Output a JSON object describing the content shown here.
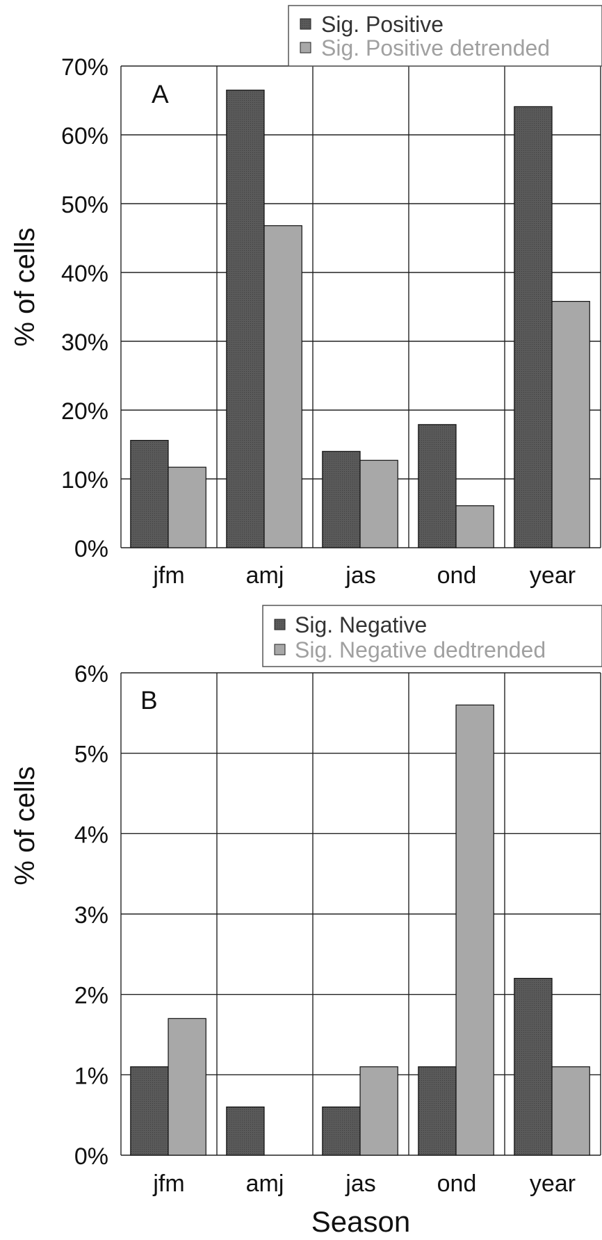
{
  "chart_data": [
    {
      "type": "bar",
      "panel_label": "A",
      "categories": [
        "jfm",
        "amj",
        "jas",
        "ond",
        "year"
      ],
      "series": [
        {
          "name": "Sig. Positive",
          "values": [
            15.6,
            66.5,
            14.0,
            17.9,
            64.1
          ]
        },
        {
          "name": "Sig. Positive detrended",
          "values": [
            11.7,
            46.8,
            12.7,
            6.1,
            35.8
          ]
        }
      ],
      "ylabel": "% of cells",
      "xlabel": "",
      "ylim": [
        0,
        70
      ],
      "yticks": [
        "0%",
        "10%",
        "20%",
        "30%",
        "40%",
        "50%",
        "60%",
        "70%"
      ],
      "grid": true,
      "legend_position": "top-right",
      "colors": {
        "series1": "#555555",
        "series2": "#a8a8a8",
        "legend_text2": "#a0a0a0"
      }
    },
    {
      "type": "bar",
      "panel_label": "B",
      "categories": [
        "jfm",
        "amj",
        "jas",
        "ond",
        "year"
      ],
      "series": [
        {
          "name": "Sig. Negative",
          "values": [
            1.1,
            0.6,
            0.6,
            1.1,
            2.2
          ]
        },
        {
          "name": "Sig. Negative dedtrended",
          "values": [
            1.7,
            0.0,
            1.1,
            5.6,
            1.1
          ]
        }
      ],
      "ylabel": "% of cells",
      "xlabel": "Season",
      "ylim": [
        0,
        6
      ],
      "yticks": [
        "0%",
        "1%",
        "2%",
        "3%",
        "4%",
        "5%",
        "6%"
      ],
      "grid": true,
      "legend_position": "top-right",
      "colors": {
        "series1": "#555555",
        "series2": "#a8a8a8",
        "legend_text2": "#a0a0a0"
      }
    }
  ]
}
